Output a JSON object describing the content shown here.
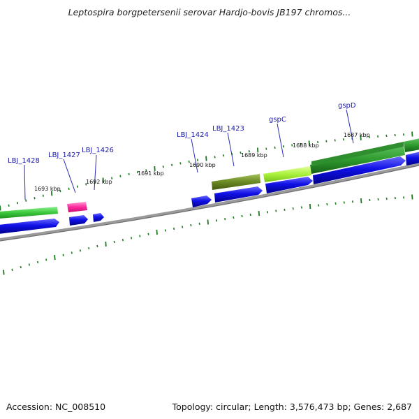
{
  "title": "Leptospira borgpetersenii serovar Hardjo-bovis JB197 chromos...",
  "footer": {
    "accession": "Accession: NC_008510",
    "summary": "Topology: circular; Length: 3,576,473 bp; Genes: 2,687"
  },
  "colors": {
    "backbone": "#8a8a8a",
    "cds": "#1010e6",
    "feature_green": "#3cc93c",
    "feature_lightgreen": "#aaf23c",
    "feature_darkgreen": "#2e9b2e",
    "feature_olive": "#6b8a23",
    "feature_magenta": "#ff2a9e",
    "tick": "#1d7a1d",
    "label_line": "#2a2ab0"
  },
  "kbp_labels": [
    "1693 kbp",
    "1692 kbp",
    "1691 kbp",
    "1690 kbp",
    "1689 kbp",
    "1688 kbp",
    "1687 kbp"
  ],
  "gene_labels": [
    "LBJ_1428",
    "LBJ_1427",
    "LBJ_1426",
    "LBJ_1424",
    "LBJ_1423",
    "gspC",
    "gspD"
  ]
}
